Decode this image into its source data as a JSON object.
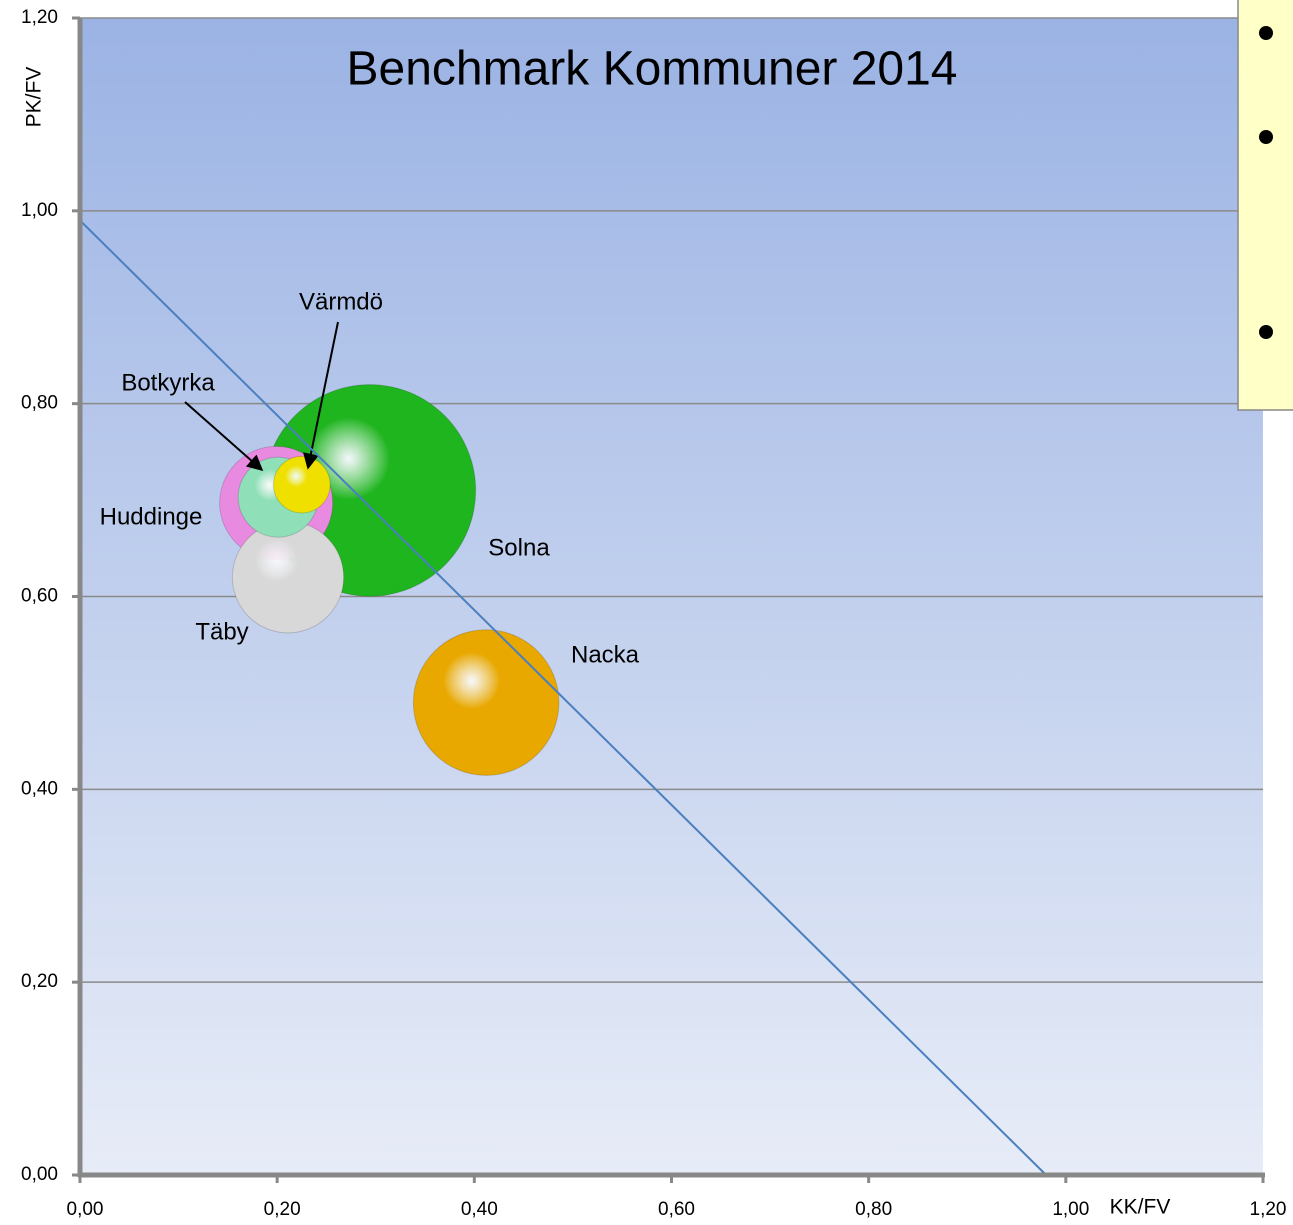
{
  "chart_data": {
    "type": "bubble",
    "title": "Benchmark Kommuner 2014",
    "x_label": "KK/FV",
    "y_label": "PK/FV",
    "xlim": [
      0,
      1.2
    ],
    "ylim": [
      0,
      1.2
    ],
    "xticks": [
      {
        "value": 0,
        "label": "0,00"
      },
      {
        "value": 0.2,
        "label": "0,20"
      },
      {
        "value": 0.4,
        "label": "0,40"
      },
      {
        "value": 0.6,
        "label": "0,60"
      },
      {
        "value": 0.8,
        "label": "0,80"
      },
      {
        "value": 1,
        "label": "1,00"
      },
      {
        "value": 1.2,
        "label": "1,20"
      }
    ],
    "yticks": [
      {
        "value": 0,
        "label": "0,00"
      },
      {
        "value": 0.2,
        "label": "0,20"
      },
      {
        "value": 0.4,
        "label": "0,40"
      },
      {
        "value": 0.6,
        "label": "0,60"
      },
      {
        "value": 0.8,
        "label": "0,80"
      },
      {
        "value": 1,
        "label": "1,00"
      },
      {
        "value": 1.2,
        "label": "1,20"
      }
    ],
    "grid": true,
    "points": [
      {
        "name": "Solna",
        "x": 0.294,
        "y": 0.71,
        "size": 112,
        "color": "#1fb51f"
      },
      {
        "name": "Nacka",
        "x": 0.412,
        "y": 0.49,
        "size": 53,
        "color": "#e8a800"
      },
      {
        "name": "Huddinge",
        "x": 0.199,
        "y": 0.697,
        "size": 32,
        "color": "#e88ae0"
      },
      {
        "name": "Täby",
        "x": 0.211,
        "y": 0.62,
        "size": 31,
        "color": "#d8d8d8"
      },
      {
        "name": "Botkyrka",
        "x": 0.201,
        "y": 0.703,
        "size": 16,
        "color": "#8fe0b8"
      },
      {
        "name": "Värmdö",
        "x": 0.225,
        "y": 0.716,
        "size": 8,
        "color": "#f0e000"
      }
    ],
    "line": {
      "x": [
        0,
        0.98
      ],
      "y": [
        0.99,
        0
      ],
      "color": "#4a7fc0"
    }
  }
}
